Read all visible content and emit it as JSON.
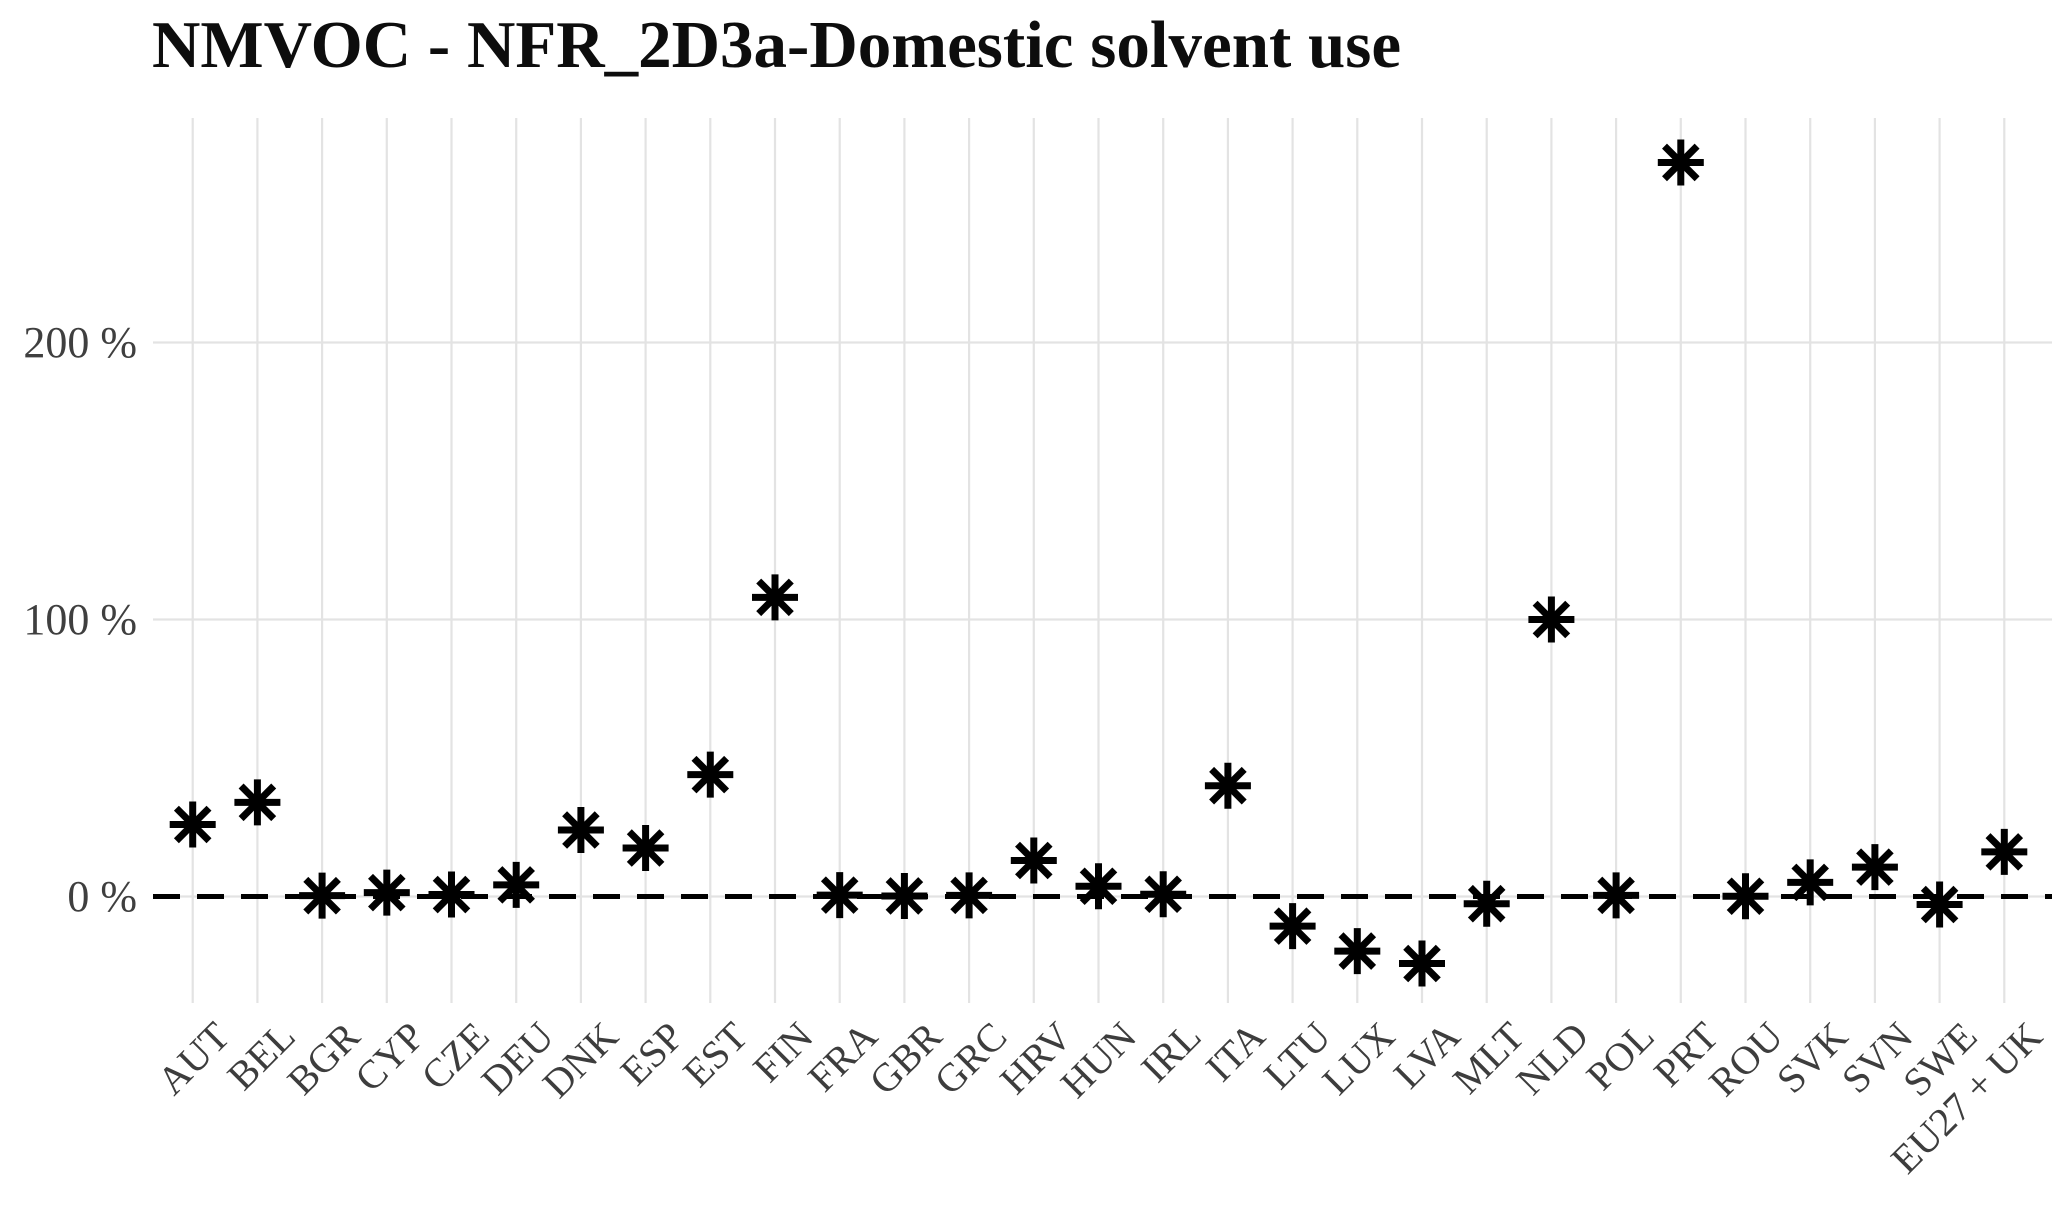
{
  "title": "NMVOC - NFR_2D3a-Domestic solvent use",
  "chart_data": {
    "type": "scatter",
    "title": "NMVOC - NFR_2D3a-Domestic solvent use",
    "marker": "eight-armed asterisk (R pch=8)",
    "unit": "%",
    "categories": [
      "AUT",
      "BEL",
      "BGR",
      "CYP",
      "CZE",
      "DEU",
      "DNK",
      "ESP",
      "EST",
      "FIN",
      "FRA",
      "GBR",
      "GRC",
      "HRV",
      "HUN",
      "IRL",
      "ITA",
      "LTU",
      "LUX",
      "LVA",
      "MLT",
      "NLD",
      "POL",
      "PRT",
      "ROU",
      "SVK",
      "SVN",
      "SWE",
      "EU27 + UK"
    ],
    "values": [
      26,
      34,
      0.3,
      1.4,
      0.7,
      4.2,
      24,
      17.5,
      44,
      108,
      0.5,
      0.2,
      0.4,
      13,
      3.7,
      0.8,
      40,
      -10.7,
      -19.7,
      -24.2,
      -2.6,
      100,
      0.4,
      265,
      0.1,
      5.1,
      10.6,
      -2.9,
      16.1
    ],
    "y_axis": {
      "tick_labels": [
        "0 %",
        "100 %",
        "200 %"
      ],
      "tick_values": [
        0,
        100,
        200
      ],
      "range": [
        -38,
        281
      ]
    },
    "x_axis": {
      "label_angle_deg": 45
    },
    "reference_line": {
      "y": 0,
      "style": "dashed"
    },
    "grid": {
      "vertical_per_category": true,
      "horizontal_at_ticks": true
    },
    "legend": "none",
    "colors": {
      "marker": "#000000",
      "zero_line": "#000000",
      "grid": "#e3e3e3",
      "axis_text": "#3d3d3d",
      "title": "#0d0d0d",
      "background": "#ffffff"
    }
  }
}
